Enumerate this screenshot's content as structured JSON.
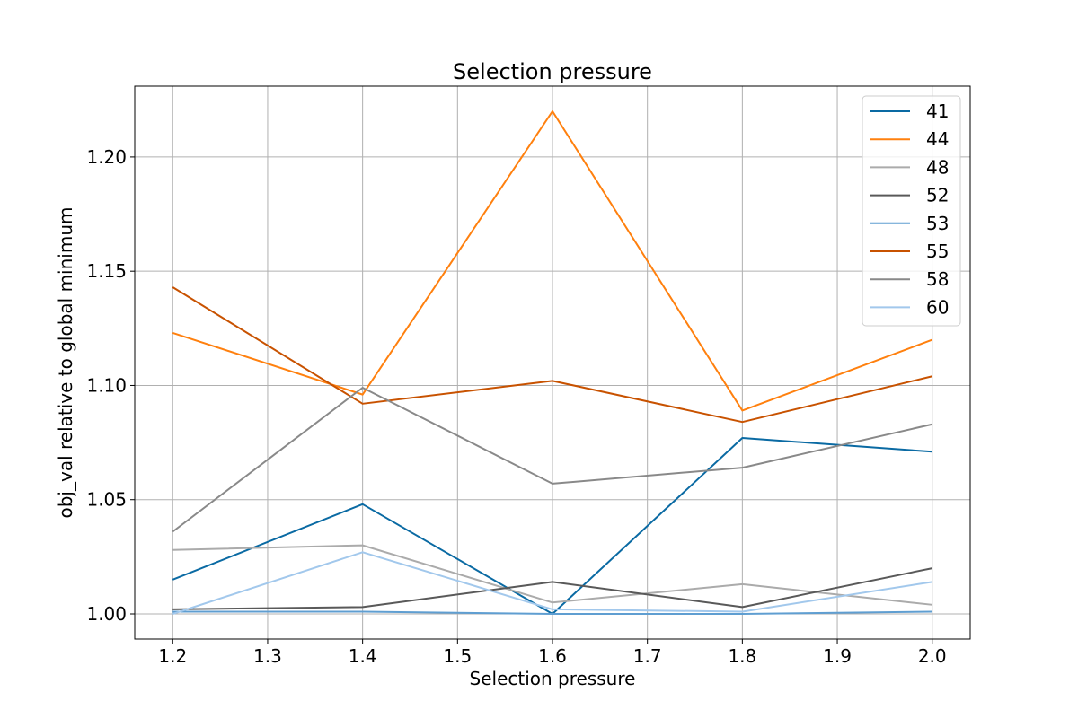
{
  "chart_data": {
    "type": "line",
    "title": "Selection pressure",
    "xlabel": "Selection pressure",
    "ylabel": "obj_val relative to global minimum",
    "x": [
      1.2,
      1.4,
      1.6,
      1.8,
      2.0
    ],
    "xlim": [
      1.16,
      2.04
    ],
    "ylim": [
      0.989,
      1.231
    ],
    "xticks": [
      "1.2",
      "1.3",
      "1.4",
      "1.5",
      "1.6",
      "1.7",
      "1.8",
      "1.9",
      "2.0"
    ],
    "yticks": [
      "1.00",
      "1.05",
      "1.10",
      "1.15",
      "1.20"
    ],
    "grid": true,
    "legend_position": "top-right",
    "series": [
      {
        "name": "41",
        "color": "#0a6aa3",
        "values": [
          1.015,
          1.048,
          1.0,
          1.077,
          1.071
        ]
      },
      {
        "name": "44",
        "color": "#ff800e",
        "values": [
          1.123,
          1.096,
          1.22,
          1.089,
          1.12
        ]
      },
      {
        "name": "48",
        "color": "#ababab",
        "values": [
          1.028,
          1.03,
          1.005,
          1.013,
          1.004
        ]
      },
      {
        "name": "52",
        "color": "#595959",
        "values": [
          1.002,
          1.003,
          1.014,
          1.003,
          1.02
        ]
      },
      {
        "name": "53",
        "color": "#5f9ed1",
        "values": [
          1.001,
          1.001,
          1.0,
          1.0,
          1.001
        ]
      },
      {
        "name": "55",
        "color": "#c85200",
        "values": [
          1.143,
          1.092,
          1.102,
          1.084,
          1.104
        ]
      },
      {
        "name": "58",
        "color": "#898989",
        "values": [
          1.036,
          1.099,
          1.057,
          1.064,
          1.083
        ]
      },
      {
        "name": "60",
        "color": "#a2c8ec",
        "values": [
          1.0,
          1.027,
          1.002,
          1.001,
          1.014
        ]
      }
    ]
  }
}
